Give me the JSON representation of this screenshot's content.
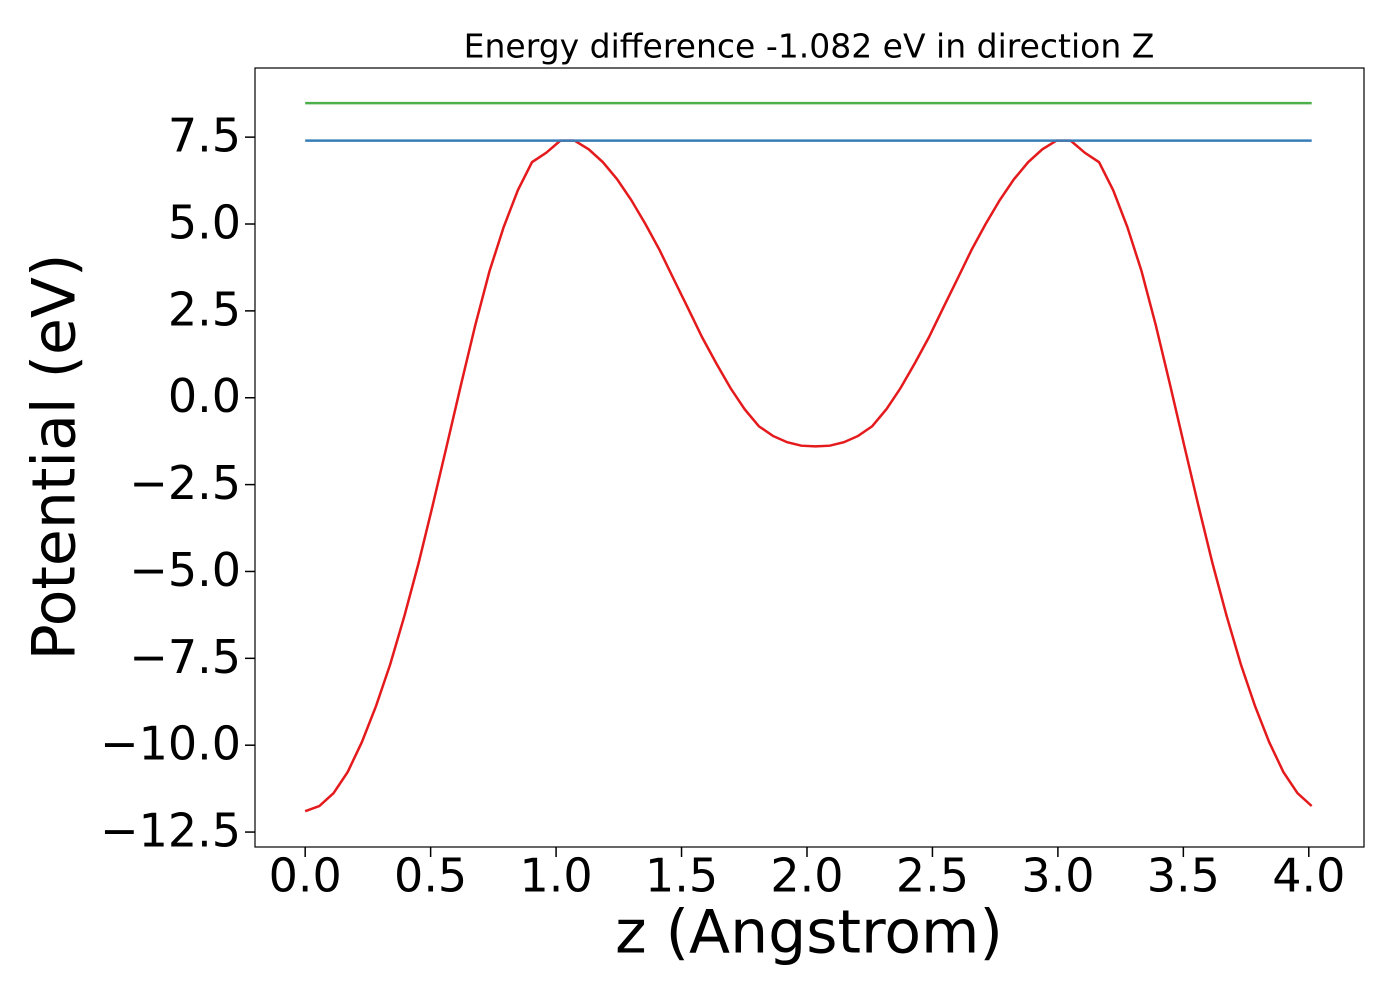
{
  "chart_data": {
    "type": "line",
    "title": "Energy difference -1.082 eV in direction Z",
    "xlabel": "z (Angstrom)",
    "ylabel": "Potential (eV)",
    "xlim": [
      -0.2,
      4.22
    ],
    "ylim": [
      -12.93,
      9.49
    ],
    "xticks": [
      {
        "value": 0,
        "label": "0.0"
      },
      {
        "value": 0.5,
        "label": "0.5"
      },
      {
        "value": 1,
        "label": "1.0"
      },
      {
        "value": 1.5,
        "label": "1.5"
      },
      {
        "value": 2,
        "label": "2.0"
      },
      {
        "value": 2.5,
        "label": "2.5"
      },
      {
        "value": 3,
        "label": "3.0"
      },
      {
        "value": 3.5,
        "label": "3.5"
      },
      {
        "value": 4,
        "label": "4.0"
      }
    ],
    "yticks": [
      7.5,
      {
        "value": 5,
        "label": "5.0"
      },
      2.5,
      {
        "value": 0,
        "label": "0.0"
      },
      {
        "value": -2.5,
        "label": "−2.5"
      },
      {
        "value": -5,
        "label": "−5.0"
      },
      {
        "value": -7.5,
        "label": "−7.5"
      },
      {
        "value": -10,
        "label": "−10.0"
      },
      {
        "value": -12.5,
        "label": "−12.5"
      }
    ],
    "grid": false,
    "series": [
      {
        "color": "#e41a1c",
        "x": [
          0,
          0.0565,
          0.113,
          0.1695,
          0.226,
          0.2825,
          0.339,
          0.3955,
          0.452,
          0.5085,
          0.565,
          0.6215,
          0.678,
          0.7345,
          0.791,
          0.8475,
          0.904,
          0.9605,
          1.017,
          1.0735,
          1.13,
          1.1865,
          1.243,
          1.2995,
          1.356,
          1.4125,
          1.469,
          1.5255,
          1.582,
          1.6385,
          1.695,
          1.7515,
          1.808,
          1.8645,
          1.921,
          1.9775,
          2.034,
          2.0905,
          2.147,
          2.2035,
          2.26,
          2.3165,
          2.373,
          2.4295,
          2.486,
          2.5425,
          2.599,
          2.6555,
          2.712,
          2.7685,
          2.825,
          2.8815,
          2.938,
          2.9945,
          3.051,
          3.1075,
          3.164,
          3.2205,
          3.277,
          3.3335,
          3.39,
          3.4465,
          3.503,
          3.5595,
          3.616,
          3.6725,
          3.729,
          3.7855,
          3.842,
          3.8985,
          3.955,
          4.0115
        ],
        "values": [
          -11.9,
          -11.75,
          -11.38,
          -10.77,
          -9.91,
          -8.87,
          -7.67,
          -6.28,
          -4.76,
          -3.09,
          -1.36,
          0.39,
          2.09,
          3.64,
          4.91,
          5.97,
          6.78,
          7.05,
          7.4,
          7.4,
          7.15,
          6.78,
          6.29,
          5.69,
          5.0,
          4.25,
          3.41,
          2.58,
          1.74,
          0.99,
          0.28,
          -0.33,
          -0.82,
          -1.1,
          -1.28,
          -1.38,
          -1.4,
          -1.38,
          -1.28,
          -1.1,
          -0.82,
          -0.33,
          0.28,
          0.99,
          1.74,
          2.58,
          3.41,
          4.25,
          5.0,
          5.69,
          6.29,
          6.78,
          7.15,
          7.4,
          7.4,
          7.05,
          6.78,
          5.97,
          4.91,
          3.64,
          2.09,
          0.39,
          -1.36,
          -3.09,
          -4.76,
          -6.28,
          -7.67,
          -8.87,
          -9.91,
          -10.77,
          -11.38,
          -11.75
        ]
      },
      {
        "color": "#4daf4a",
        "x": [
          0,
          4.0115
        ],
        "values": [
          8.48,
          8.48
        ]
      },
      {
        "color": "#377eb8",
        "x": [
          0,
          4.0115
        ],
        "values": [
          7.4,
          7.4
        ]
      }
    ]
  }
}
